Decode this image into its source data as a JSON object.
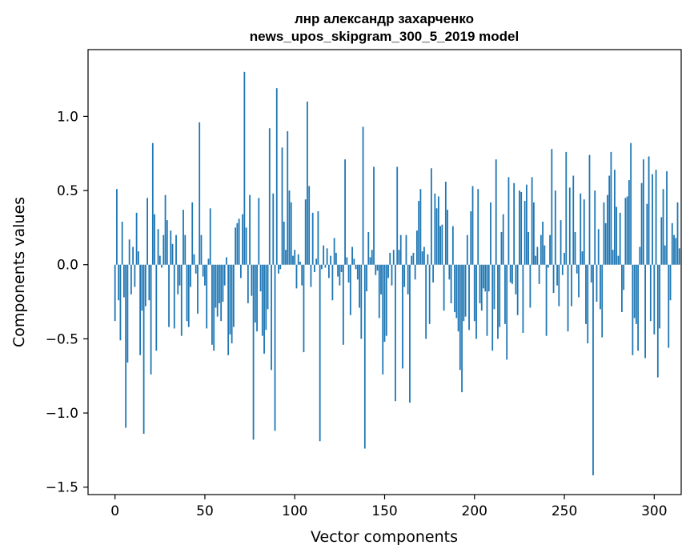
{
  "chart_data": {
    "type": "bar",
    "title_line1": "лнр александр захарченко",
    "title_line2": "news_upos_skipgram_300_5_2019 model",
    "xlabel": "Vector components",
    "ylabel": "Components values",
    "xlim": [
      -15,
      315
    ],
    "ylim": [
      -1.55,
      1.45
    ],
    "xticks": [
      0,
      50,
      100,
      150,
      200,
      250,
      300
    ],
    "xtick_labels": [
      "0",
      "50",
      "100",
      "150",
      "200",
      "250",
      "300"
    ],
    "yticks": [
      -1.5,
      -1.0,
      -0.5,
      0.0,
      0.5,
      1.0
    ],
    "ytick_labels": [
      "−1.5",
      "−1.0",
      "−0.5",
      "0.0",
      "0.5",
      "1.0"
    ],
    "bar_color": "#1f77b4",
    "values": [
      -0.38,
      0.51,
      -0.24,
      -0.51,
      0.29,
      -0.22,
      -1.1,
      -0.66,
      0.17,
      -0.2,
      0.12,
      -0.15,
      0.35,
      0.09,
      -0.61,
      -0.31,
      -1.14,
      -0.28,
      0.45,
      -0.24,
      -0.74,
      0.82,
      0.34,
      -0.58,
      0.24,
      0.06,
      -0.02,
      0.2,
      0.47,
      0.3,
      -0.42,
      0.23,
      0.14,
      -0.43,
      0.2,
      -0.2,
      -0.14,
      -0.48,
      0.37,
      0.2,
      -0.38,
      -0.42,
      -0.15,
      0.42,
      0.07,
      -0.06,
      -0.33,
      0.96,
      0.2,
      -0.08,
      -0.14,
      -0.43,
      0.04,
      0.38,
      -0.54,
      -0.58,
      -0.29,
      -0.35,
      -0.26,
      -0.38,
      -0.25,
      -0.14,
      0.05,
      -0.61,
      -0.47,
      -0.53,
      -0.42,
      0.25,
      0.28,
      0.31,
      -0.09,
      0.34,
      1.3,
      0.25,
      -0.26,
      0.47,
      -0.21,
      -1.18,
      -0.39,
      -0.45,
      0.45,
      -0.18,
      -0.48,
      -0.6,
      -0.44,
      -0.3,
      0.92,
      -0.71,
      0.48,
      -1.12,
      1.19,
      -0.06,
      -0.03,
      0.79,
      0.29,
      0.1,
      0.9,
      0.5,
      0.42,
      0.06,
      0.1,
      -0.16,
      0.07,
      0.02,
      -0.14,
      -0.59,
      0.44,
      1.1,
      0.53,
      -0.15,
      0.35,
      -0.05,
      0.04,
      0.36,
      -1.19,
      -0.03,
      0.13,
      -0.02,
      0.11,
      -0.09,
      0.06,
      -0.24,
      0.18,
      0.08,
      -0.08,
      -0.14,
      -0.05,
      -0.54,
      0.71,
      0.05,
      -0.12,
      -0.34,
      0.12,
      0.04,
      -0.03,
      -0.1,
      -0.29,
      -0.5,
      0.93,
      -1.24,
      -0.18,
      0.22,
      0.05,
      0.1,
      0.66,
      -0.07,
      -0.04,
      -0.36,
      -0.2,
      -0.74,
      -0.52,
      -0.48,
      -0.09,
      0.08,
      -0.14,
      0.1,
      -0.92,
      0.66,
      0.1,
      0.2,
      -0.7,
      -0.15,
      0.2,
      -0.2,
      -0.93,
      0.06,
      0.08,
      -0.1,
      0.23,
      0.43,
      0.51,
      0.09,
      0.12,
      -0.5,
      0.07,
      -0.4,
      0.65,
      -0.12,
      0.48,
      0.38,
      0.46,
      0.26,
      0.27,
      -0.31,
      0.56,
      0.37,
      -0.1,
      -0.26,
      0.26,
      -0.32,
      -0.36,
      -0.45,
      -0.71,
      -0.86,
      -0.38,
      -0.35,
      0.2,
      -0.44,
      0.36,
      0.53,
      -0.38,
      -0.5,
      0.51,
      -0.26,
      -0.31,
      -0.16,
      -0.18,
      -0.48,
      -0.18,
      0.42,
      -0.58,
      -0.3,
      0.71,
      -0.5,
      -0.42,
      0.22,
      0.34,
      -0.4,
      -0.64,
      0.59,
      -0.12,
      -0.13,
      0.55,
      -0.2,
      -0.34,
      0.5,
      0.49,
      -0.46,
      0.43,
      0.54,
      0.22,
      -0.29,
      0.59,
      0.42,
      0.06,
      0.12,
      -0.13,
      0.2,
      0.29,
      0.13,
      -0.48,
      -0.02,
      0.2,
      0.78,
      -0.19,
      0.5,
      -0.14,
      -0.28,
      0.3,
      -0.07,
      0.08,
      0.76,
      -0.45,
      0.52,
      -0.28,
      0.6,
      0.22,
      -0.06,
      -0.22,
      0.48,
      0.09,
      0.44,
      -0.4,
      -0.53,
      0.74,
      -0.12,
      -1.42,
      0.5,
      -0.25,
      0.24,
      -0.3,
      -0.49,
      0.42,
      0.28,
      0.47,
      0.6,
      0.76,
      0.1,
      0.64,
      0.39,
      0.06,
      0.35,
      -0.32,
      -0.17,
      0.45,
      0.46,
      0.57,
      0.82,
      -0.61,
      -0.36,
      -0.4,
      -0.58,
      0.12,
      0.55,
      0.71,
      -0.63,
      0.41,
      0.73,
      -0.38,
      0.61,
      -0.47,
      0.64,
      -0.76,
      -0.43,
      0.32,
      0.51,
      0.13,
      0.63,
      -0.56,
      -0.24,
      0.28,
      0.2,
      0.18,
      0.42,
      0.11
    ]
  }
}
